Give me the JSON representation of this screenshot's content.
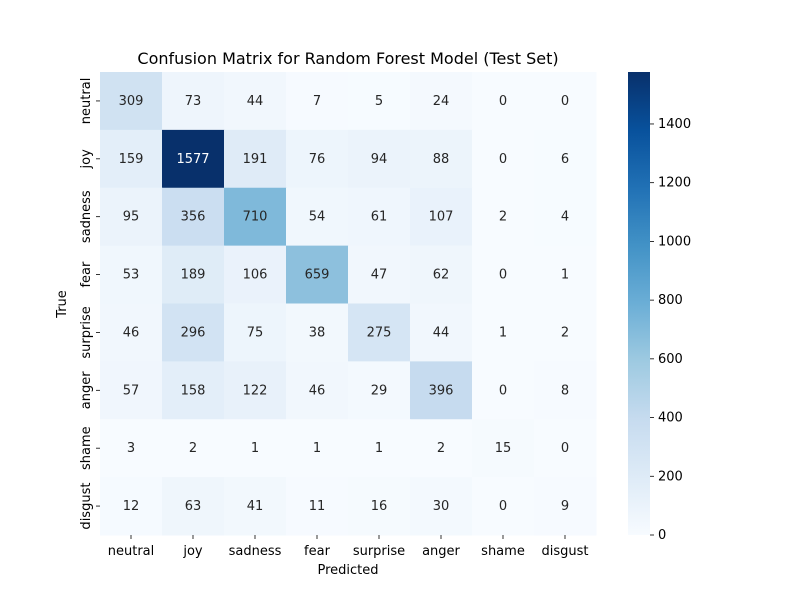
{
  "chart_data": {
    "type": "heatmap",
    "title": "Confusion Matrix for Random Forest Model (Test Set)",
    "xlabel": "Predicted",
    "ylabel": "True",
    "x_categories": [
      "neutral",
      "joy",
      "sadness",
      "fear",
      "surprise",
      "anger",
      "shame",
      "disgust"
    ],
    "y_categories": [
      "neutral",
      "joy",
      "sadness",
      "fear",
      "surprise",
      "anger",
      "shame",
      "disgust"
    ],
    "values": [
      [
        309,
        73,
        44,
        7,
        5,
        24,
        0,
        0
      ],
      [
        159,
        1577,
        191,
        76,
        94,
        88,
        0,
        6
      ],
      [
        95,
        356,
        710,
        54,
        61,
        107,
        2,
        4
      ],
      [
        53,
        189,
        106,
        659,
        47,
        62,
        0,
        1
      ],
      [
        46,
        296,
        75,
        38,
        275,
        44,
        1,
        2
      ],
      [
        57,
        158,
        122,
        46,
        29,
        396,
        0,
        8
      ],
      [
        3,
        2,
        1,
        1,
        1,
        2,
        15,
        0
      ],
      [
        12,
        63,
        41,
        11,
        16,
        30,
        0,
        9
      ]
    ],
    "colorbar": {
      "min": 0,
      "max": 1577,
      "ticks": [
        0,
        200,
        400,
        600,
        800,
        1000,
        1200,
        1400
      ],
      "tick_labels": [
        "0",
        "200",
        "400",
        "600",
        "800",
        "1000",
        "1200",
        "1400"
      ],
      "colormap": "Blues",
      "colors": [
        "#f7fbff",
        "#deebf7",
        "#c6dbef",
        "#9ecae1",
        "#6baed6",
        "#4292c6",
        "#2171b5",
        "#08519c",
        "#08306b"
      ]
    },
    "annotation_colors": {
      "dark": "#262626",
      "light": "#ffffff"
    }
  }
}
